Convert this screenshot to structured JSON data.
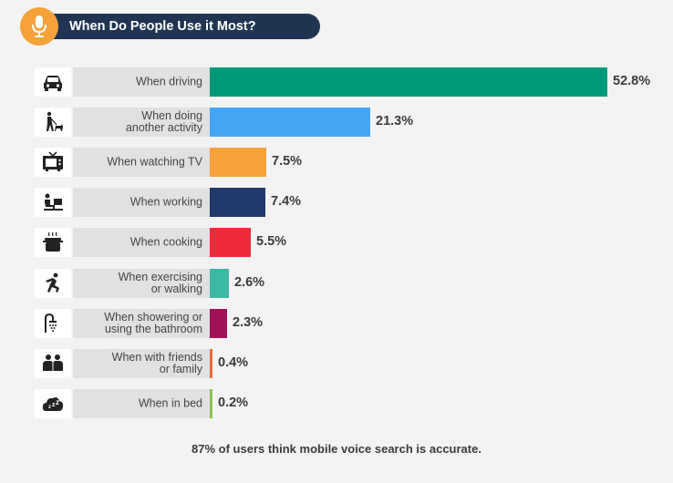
{
  "header": {
    "title": "When Do People Use it Most?",
    "icon": "microphone-icon"
  },
  "chart_data": {
    "type": "bar",
    "orientation": "horizontal",
    "categories": [
      "When driving",
      "When doing another activity",
      "When watching TV",
      "When working",
      "When cooking",
      "When exercising or walking",
      "When showering or using the bathroom",
      "When with friends or family",
      "When in bed"
    ],
    "values": [
      52.8,
      21.3,
      7.5,
      7.4,
      5.5,
      2.6,
      2.3,
      0.4,
      0.2
    ],
    "value_labels": [
      "52.8%",
      "21.3%",
      "7.5%",
      "7.4%",
      "5.5%",
      "2.6%",
      "2.3%",
      "0.4%",
      "0.2%"
    ],
    "colors": [
      "#00997a",
      "#42a5f5",
      "#f7a13a",
      "#1f3a6b",
      "#ee2a3b",
      "#3db8a4",
      "#a0125a",
      "#f26a35",
      "#8bc34a"
    ],
    "icons": [
      "car-icon",
      "walking-dog-icon",
      "tv-icon",
      "desk-worker-icon",
      "cooking-pot-icon",
      "runner-icon",
      "shower-icon",
      "friends-icon",
      "sleep-cloud-icon"
    ],
    "title": "When Do People Use it Most?"
  },
  "rows": [
    {
      "label_lines": [
        "When driving"
      ]
    },
    {
      "label_lines": [
        "When doing",
        "another activity"
      ]
    },
    {
      "label_lines": [
        "When watching TV"
      ]
    },
    {
      "label_lines": [
        "When working"
      ]
    },
    {
      "label_lines": [
        "When cooking"
      ]
    },
    {
      "label_lines": [
        "When exercising",
        "or walking"
      ]
    },
    {
      "label_lines": [
        "When showering or",
        "using the bathroom"
      ]
    },
    {
      "label_lines": [
        "When with friends",
        "or family"
      ]
    },
    {
      "label_lines": [
        "When in bed"
      ]
    }
  ],
  "footer": {
    "text": "87% of users think mobile voice search is accurate."
  }
}
